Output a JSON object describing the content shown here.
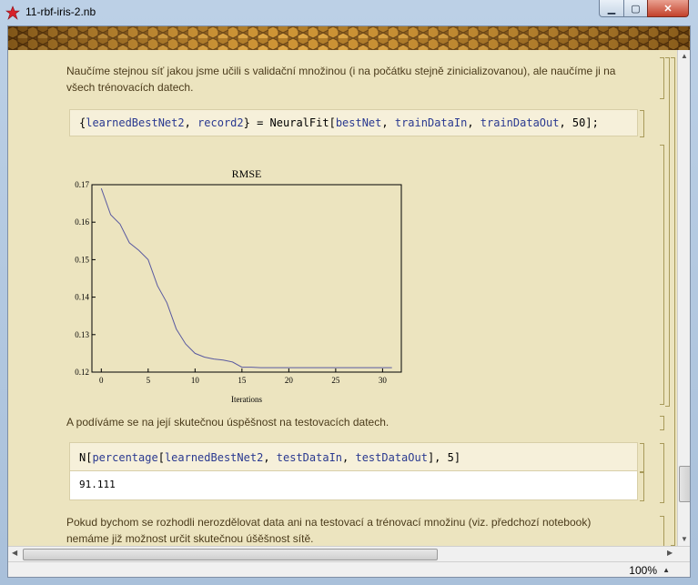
{
  "window": {
    "title": "11-rbf-iris-2.nb"
  },
  "notebook": {
    "text1_line1": "Naučíme stejnou síť jakou jsme učili s validační množinou (i na počátku stejně zinicializovanou), ale naučíme ji na",
    "text1_line2": "všech trénovacích datech.",
    "input1": {
      "t1": "{",
      "t2": "learnedBestNet2",
      "t3": ", ",
      "t4": "record2",
      "t5": "} = ",
      "t6": "NeuralFit",
      "t7": "[",
      "t8": "bestNet",
      "t9": ", ",
      "t10": "trainDataIn",
      "t11": ", ",
      "t12": "trainDataOut",
      "t13": ", 50];"
    },
    "text2": "A podíváme se na její skutečnou úspěšnost na testovacích datech.",
    "input2": {
      "t1": "N[",
      "t2": "percentage",
      "t3": "[",
      "t4": "learnedBestNet2",
      "t5": ", ",
      "t6": "testDataIn",
      "t7": ", ",
      "t8": "testDataOut",
      "t9": "], 5]"
    },
    "output2": "91.111",
    "text3_line1": "Pokud bychom se rozhodli nerozdělovat data ani na testovací a trénovací množinu (viz. předchozí notebook)",
    "text3_line2": "nemáme již možnost určit skutečnou úšěšnost sítě."
  },
  "status": {
    "zoom": "100%"
  },
  "chart_data": {
    "type": "line",
    "title": "RMSE",
    "xlabel": "Iterations",
    "ylabel": "",
    "xlim": [
      -1,
      32
    ],
    "ylim": [
      0.12,
      0.17
    ],
    "xticks": [
      0,
      5,
      10,
      15,
      20,
      25,
      30
    ],
    "yticks": [
      0.12,
      0.13,
      0.14,
      0.15,
      0.16,
      0.17
    ],
    "xtick_labels": [
      "0",
      "5",
      "10",
      "15",
      "20",
      "25",
      "30"
    ],
    "ytick_labels": [
      "0.12",
      "0.13",
      "0.14",
      "0.15",
      "0.16",
      "0.17"
    ],
    "series": [
      {
        "color": "#5a5aa0",
        "x": [
          0,
          1,
          2,
          3,
          4,
          5,
          6,
          7,
          8,
          9,
          10,
          11,
          12,
          13,
          14,
          15,
          16,
          17,
          18,
          19,
          20,
          21,
          22,
          23,
          24,
          25,
          26,
          27,
          28,
          29,
          30,
          31
        ],
        "y": [
          0.169,
          0.162,
          0.1595,
          0.1545,
          0.1525,
          0.15,
          0.143,
          0.1385,
          0.1315,
          0.1275,
          0.125,
          0.124,
          0.1235,
          0.1232,
          0.1227,
          0.1213,
          0.1213,
          0.1212,
          0.1212,
          0.1212,
          0.1212,
          0.1212,
          0.1212,
          0.1212,
          0.1212,
          0.1212,
          0.1212,
          0.1212,
          0.1212,
          0.1212,
          0.1212,
          0.1212
        ]
      }
    ],
    "grid": false
  }
}
